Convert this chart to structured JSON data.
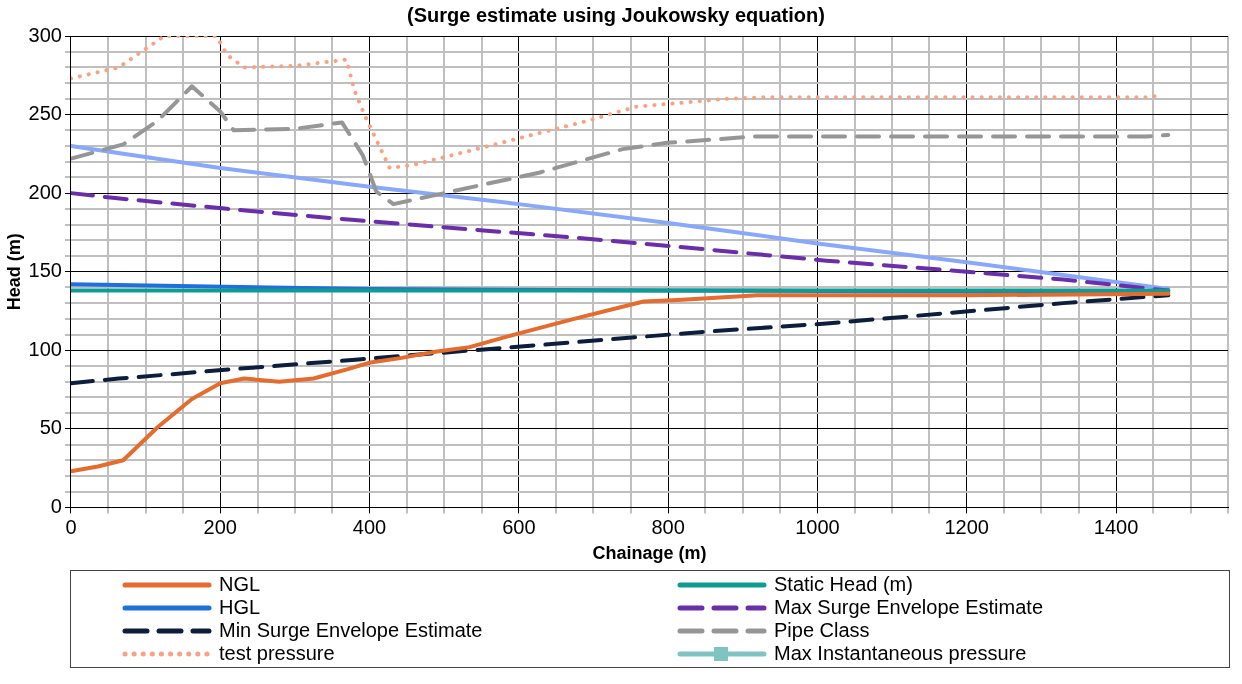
{
  "chart_data": {
    "type": "line",
    "title": "(Surge estimate using Joukowsky equation)",
    "xlabel": "Chainage (m)",
    "ylabel": "Head (m)",
    "xlim": [
      0,
      1550
    ],
    "xticks": [
      0,
      {
        "value": 50,
        "label": null
      },
      {
        "value": 100,
        "label": null
      },
      {
        "value": 150,
        "label": null
      },
      200,
      {
        "value": 250,
        "label": null
      },
      {
        "value": 300,
        "label": null
      },
      {
        "value": 350,
        "label": null
      },
      400,
      {
        "value": 450,
        "label": null
      },
      {
        "value": 500,
        "label": null
      },
      {
        "value": 550,
        "label": null
      },
      600,
      {
        "value": 650,
        "label": null
      },
      {
        "value": 700,
        "label": null
      },
      {
        "value": 750,
        "label": null
      },
      800,
      {
        "value": 850,
        "label": null
      },
      {
        "value": 900,
        "label": null
      },
      {
        "value": 950,
        "label": null
      },
      1000,
      {
        "value": 1050,
        "label": null
      },
      {
        "value": 1100,
        "label": null
      },
      {
        "value": 1150,
        "label": null
      },
      1200,
      {
        "value": 1250,
        "label": null
      },
      {
        "value": 1300,
        "label": null
      },
      {
        "value": 1350,
        "label": null
      },
      1400,
      {
        "value": 1450,
        "label": null
      },
      {
        "value": 1500,
        "label": null
      },
      {
        "value": 1550,
        "label": null
      }
    ],
    "ylim": [
      0,
      300
    ],
    "yticks": [
      0,
      {
        "value": 10,
        "label": null
      },
      {
        "value": 20,
        "label": null
      },
      {
        "value": 30,
        "label": null
      },
      {
        "value": 40,
        "label": null
      },
      50,
      {
        "value": 60,
        "label": null
      },
      {
        "value": 70,
        "label": null
      },
      {
        "value": 80,
        "label": null
      },
      {
        "value": 90,
        "label": null
      },
      100,
      {
        "value": 110,
        "label": null
      },
      {
        "value": 120,
        "label": null
      },
      {
        "value": 130,
        "label": null
      },
      {
        "value": 140,
        "label": null
      },
      150,
      {
        "value": 160,
        "label": null
      },
      {
        "value": 170,
        "label": null
      },
      {
        "value": 180,
        "label": null
      },
      {
        "value": 190,
        "label": null
      },
      200,
      {
        "value": 210,
        "label": null
      },
      {
        "value": 220,
        "label": null
      },
      {
        "value": 230,
        "label": null
      },
      {
        "value": 240,
        "label": null
      },
      250,
      {
        "value": 260,
        "label": null
      },
      {
        "value": 270,
        "label": null
      },
      {
        "value": 280,
        "label": null
      },
      {
        "value": 290,
        "label": null
      },
      300
    ],
    "grid": true,
    "legend": "bottom",
    "marker": "none",
    "series": [
      {
        "name": "NGL",
        "color": "#e46c2e",
        "line_style": "solid",
        "x": [
          0,
          36,
          70,
          116,
          162,
          200,
          232,
          279,
          325,
          371,
          399,
          441,
          488,
          534,
          594,
          674,
          767,
          813,
          920,
          1200,
          1470
        ],
        "values": [
          23,
          26,
          30,
          51,
          69,
          79,
          82,
          80,
          82,
          88,
          92,
          95,
          99,
          102,
          110,
          120,
          131,
          132,
          135,
          135,
          136
        ]
      },
      {
        "name": "Static Head (m)",
        "color": "#0f9a94",
        "line_style": "solid",
        "x": [
          0,
          1470
        ],
        "values": [
          138,
          138
        ]
      },
      {
        "name": "HGL",
        "color": "#1f6fdc",
        "line_style": "solid",
        "x": [
          0,
          400,
          800,
          1470
        ],
        "values": [
          142,
          139,
          138,
          137
        ]
      },
      {
        "name": "Max Surge Envelope Estimate",
        "color": "#6a2ea8",
        "line_style": "dashed",
        "x": [
          0,
          56,
          209,
          376,
          534,
          692,
          855,
          1012,
          1120,
          1329,
          1470
        ],
        "values": [
          200,
          197,
          190,
          183,
          177,
          171,
          164,
          157,
          153,
          145,
          138
        ]
      },
      {
        "name": "Min Surge Envelope Estimate",
        "color": "#0d1e3c",
        "line_style": "dashed",
        "x": [
          0,
          64,
          218,
          381,
          539,
          855,
          1012,
          1329,
          1470
        ],
        "values": [
          79,
          82,
          88,
          94,
          100,
          112,
          117,
          130,
          135
        ]
      },
      {
        "name": "Pipe Class",
        "color": "#969696",
        "line_style": "dashed",
        "x": [
          0,
          70,
          116,
          162,
          200,
          218,
          301,
          363,
          391,
          409,
          432,
          558,
          627,
          739,
          799,
          915,
          1440,
          1470
        ],
        "values": [
          222,
          231,
          246,
          268,
          252,
          240,
          241,
          245,
          224,
          201,
          193,
          206,
          213,
          228,
          232,
          236,
          236,
          237
        ]
      },
      {
        "name": "test pressure",
        "color": "#f8a283",
        "line_style": "dotted",
        "x": [
          0,
          64,
          119,
          125,
          195,
          209,
          232,
          301,
          369,
          380,
          394,
          427,
          459,
          543,
          692,
          757,
          878,
          927,
          1440,
          1457
        ],
        "values": [
          273,
          280,
          298,
          300,
          300,
          288,
          280,
          281,
          285,
          265,
          249,
          216,
          218,
          228,
          246,
          255,
          260,
          261,
          261,
          262
        ]
      },
      {
        "name": "Max Instantaneous pressure",
        "color": "#7fc4c0",
        "line_style": "solid",
        "marker": "square"
      },
      {
        "color": "#8aa8f8",
        "line_style": "solid",
        "x": [
          0,
          70,
          200,
          400,
          600,
          800,
          1000,
          1200,
          1470
        ],
        "values": [
          230,
          225,
          216,
          204,
          193,
          181,
          168,
          156,
          139
        ]
      }
    ]
  }
}
